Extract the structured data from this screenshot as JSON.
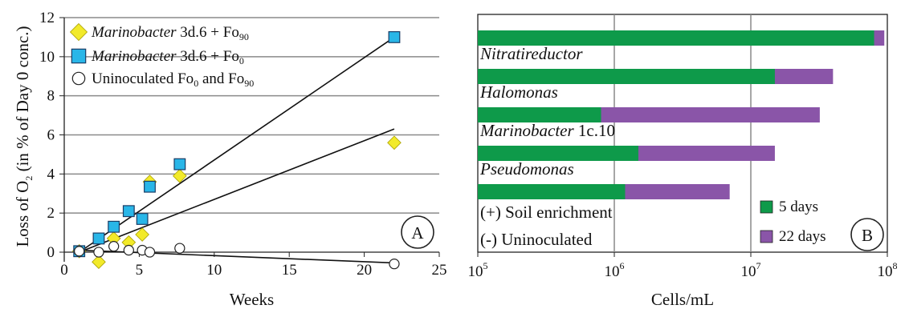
{
  "chart_data": [
    {
      "type": "scatter",
      "panel_label": "A",
      "xlabel": "Weeks",
      "ylabel_main": "Loss of O",
      "ylabel_sub": "2",
      "ylabel_rest": " (in % of Day 0 conc.)",
      "xlim": [
        0,
        25
      ],
      "ylim": [
        -1,
        12
      ],
      "xticks": [
        0,
        5,
        10,
        15,
        20,
        25
      ],
      "yticks": [
        0,
        2,
        4,
        6,
        8,
        10,
        12
      ],
      "grid": "horizontal",
      "legend_position": "top-left",
      "series": [
        {
          "legend_italic": "Marinobacter",
          "legend_rest": " 3d.6 + Fo",
          "legend_sub": "90",
          "marker": "diamond",
          "color": "#f2ea2a",
          "x": [
            1,
            2.3,
            3.3,
            4.3,
            5.2,
            5.7,
            7.7,
            22
          ],
          "y": [
            0.05,
            -0.5,
            0.7,
            0.5,
            0.9,
            3.6,
            3.9,
            5.6
          ]
        },
        {
          "legend_italic": "Marinobacter",
          "legend_rest": " 3d.6 + Fo",
          "legend_sub": "0",
          "marker": "square",
          "color": "#29b6e8",
          "x": [
            1,
            2.3,
            3.3,
            4.3,
            5.2,
            5.7,
            7.7,
            22
          ],
          "y": [
            0.05,
            0.7,
            1.3,
            2.1,
            1.7,
            3.35,
            4.5,
            11
          ]
        },
        {
          "legend_italic": "",
          "legend_rest": "Uninoculated Fo",
          "legend_sub": "0",
          "legend_rest2": " and Fo",
          "legend_sub2": "90",
          "marker": "circle",
          "color": "#ffffff",
          "x": [
            1,
            2.3,
            3.3,
            4.3,
            5.2,
            5.7,
            7.7,
            22
          ],
          "y": [
            0.05,
            0.0,
            0.3,
            0.1,
            0.1,
            0.0,
            0.2,
            -0.6
          ]
        }
      ],
      "trendlines": [
        {
          "x": [
            1,
            22
          ],
          "y": [
            0.0,
            6.3
          ]
        },
        {
          "x": [
            1,
            22
          ],
          "y": [
            0.0,
            11.0
          ]
        },
        {
          "x": [
            1,
            22
          ],
          "y": [
            0.1,
            -0.55
          ]
        }
      ]
    },
    {
      "type": "bar",
      "orientation": "horizontal",
      "stacked": true,
      "panel_label": "B",
      "xlabel": "Cells/mL",
      "xscale": "log",
      "xlim": [
        100000,
        100000000
      ],
      "xticks": [
        {
          "base": "10",
          "exp": "5"
        },
        {
          "base": "10",
          "exp": "6"
        },
        {
          "base": "10",
          "exp": "7"
        },
        {
          "base": "10",
          "exp": "8"
        }
      ],
      "grid": "vertical",
      "legend_position": "bottom-right",
      "categories": [
        {
          "italic": "Nitratireductor",
          "rest": ""
        },
        {
          "italic": "Halomonas",
          "rest": ""
        },
        {
          "italic": "Marinobacter",
          "rest": " 1c.10"
        },
        {
          "italic": "Pseudomonas",
          "rest": ""
        },
        {
          "italic": "",
          "rest": "(+) Soil enrichment"
        },
        {
          "italic": "",
          "rest": "(-) Uninoculated"
        }
      ],
      "series": [
        {
          "name": "5 days",
          "color": "#0e9a4a",
          "values": [
            80000000,
            15000000,
            800000,
            1500000,
            1200000,
            null
          ]
        },
        {
          "name": "22 days",
          "color": "#8a55a8",
          "values": [
            95000000,
            40000000,
            32000000,
            15000000,
            7000000,
            null
          ]
        }
      ]
    }
  ]
}
